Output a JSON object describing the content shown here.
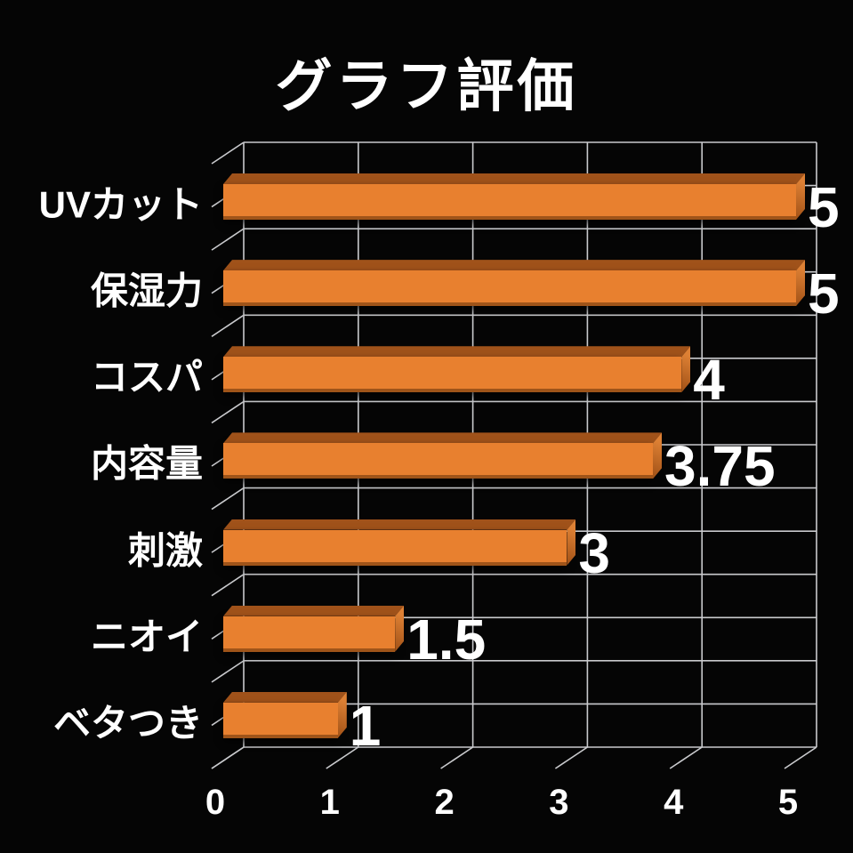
{
  "chart_data": {
    "type": "bar",
    "orientation": "horizontal",
    "style_3d": true,
    "title": "グラフ評価",
    "categories": [
      "UVカット",
      "保湿力",
      "コスパ",
      "内容量",
      "刺激",
      "ニオイ",
      "ベタつき"
    ],
    "values": [
      5,
      5,
      4,
      3.75,
      3,
      1.5,
      1
    ],
    "value_labels": [
      "5",
      "5",
      "4",
      "3.75",
      "3",
      "1.5",
      "1"
    ],
    "x_ticks": [
      "0",
      "1",
      "2",
      "3",
      "4",
      "5"
    ],
    "xlim": [
      0,
      5
    ],
    "xlabel": "",
    "ylabel": "",
    "grid": true,
    "legend": false
  },
  "theme": {
    "background": "#050505",
    "text": "#FFFFFF",
    "grid_line": "#C9CACD",
    "bar_front": "#E8802F",
    "bar_top": "#A0521A",
    "bar_end_light": "#DD8034",
    "bar_end_dark": "#A35318"
  }
}
